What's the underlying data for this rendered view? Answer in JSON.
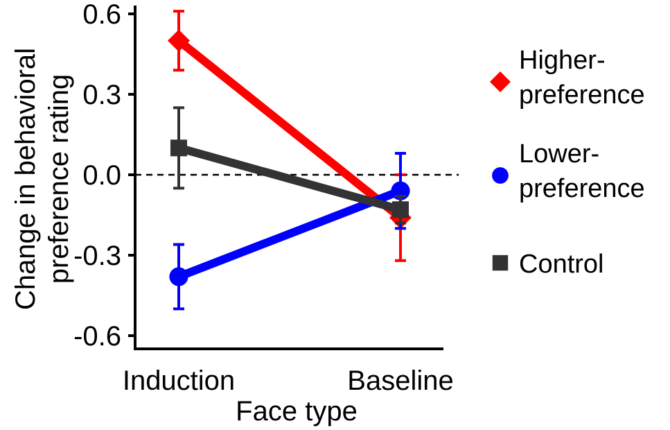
{
  "chart_data": {
    "type": "line",
    "xlabel": "Face type",
    "ylabel": [
      "Change in behavioral",
      "preference rating"
    ],
    "categories": [
      "Induction",
      "Baseline"
    ],
    "ylim": [
      -0.65,
      0.65
    ],
    "yticks": [
      0.6,
      0.3,
      0.0,
      -0.3,
      -0.6
    ],
    "ytick_labels": [
      "0.6",
      "0.3",
      "0.0",
      "-0.3",
      "-0.6"
    ],
    "zero_line": "dashed",
    "grid": false,
    "legend_position": "right",
    "series": [
      {
        "name": "Higher-preference",
        "legend_lines": [
          "Higher-",
          "preference"
        ],
        "color": "#ff0000",
        "marker": "diamond",
        "values": [
          0.5,
          -0.16
        ],
        "errors": [
          0.11,
          0.16
        ]
      },
      {
        "name": "Lower-preference",
        "legend_lines": [
          "Lower-",
          "preference"
        ],
        "color": "#0000ff",
        "marker": "circle",
        "values": [
          -0.38,
          -0.06
        ],
        "errors": [
          0.12,
          0.14
        ]
      },
      {
        "name": "Control",
        "legend_lines": [
          "Control"
        ],
        "color": "#333333",
        "marker": "square",
        "values": [
          0.1,
          -0.13
        ],
        "errors": [
          0.15,
          0.05
        ]
      }
    ]
  }
}
